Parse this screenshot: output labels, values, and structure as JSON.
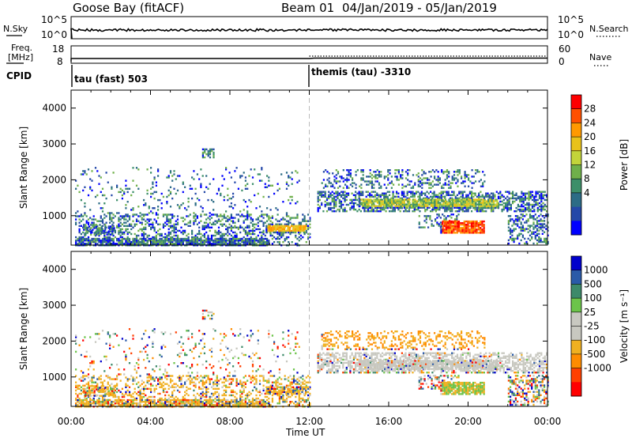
{
  "header": {
    "station": "Goose Bay (fitACF)",
    "beam": "Beam 01",
    "date_range": "04/Jan/2019 - 05/Jan/2019"
  },
  "top_panels": {
    "nsky_label": "N.Sky",
    "nsearch_label": "N.Search",
    "freq_label_1": "Freq.",
    "freq_label_2": "[MHz]",
    "nave_label": "Nave",
    "cpid_label": "CPID",
    "nsky_ticks": [
      "10^5",
      "10^0"
    ],
    "nsearch_ticks": [
      "10^5",
      "10^0"
    ],
    "freq_ticks": [
      "18",
      "8"
    ],
    "nave_ticks": [
      "60",
      "0"
    ]
  },
  "cpid": [
    {
      "label": "tau (fast) 503",
      "start_hour": 0
    },
    {
      "label": "themis (tau) -3310",
      "start_hour": 12
    }
  ],
  "chart_data": [
    {
      "type": "heatmap",
      "title": "",
      "xlabel": "Time UT",
      "ylabel": "Slant Range [km]",
      "xlim": [
        0,
        24
      ],
      "ylim": [
        180,
        4500
      ],
      "x_ticks": [
        "00:00",
        "04:00",
        "08:00",
        "12:00",
        "16:00",
        "20:00",
        "00:00"
      ],
      "y_ticks": [
        1000,
        2000,
        3000,
        4000
      ],
      "colorbar": {
        "label": "Power [dB]",
        "ticks": [
          "28",
          "24",
          "20",
          "16",
          "12",
          "8",
          "4"
        ],
        "colors": [
          "#ff0000",
          "#ff5000",
          "#ff9900",
          "#e9c21a",
          "#c3d43a",
          "#6fb04a",
          "#3d8f69",
          "#2c6c86",
          "#2448a8",
          "#0000ff"
        ]
      }
    },
    {
      "type": "heatmap",
      "title": "",
      "xlabel": "Time UT",
      "ylabel": "Slant Range [km]",
      "xlim": [
        0,
        24
      ],
      "ylim": [
        180,
        4500
      ],
      "x_ticks": [
        "00:00",
        "04:00",
        "08:00",
        "12:00",
        "16:00",
        "20:00",
        "00:00"
      ],
      "y_ticks": [
        1000,
        2000,
        3000,
        4000
      ],
      "colorbar": {
        "label": "Velocity [m s⁻¹]",
        "ticks": [
          "1000",
          "500",
          "100",
          "25",
          "-25",
          "-100",
          "-500",
          "-1000"
        ],
        "colors": [
          "#0000cc",
          "#2a5aa8",
          "#3d8a6a",
          "#6cc44a",
          "#c8c8c0",
          "#c8c8c0",
          "#f0b020",
          "#ff8c00",
          "#ff4000",
          "#ff0000"
        ]
      }
    }
  ]
}
